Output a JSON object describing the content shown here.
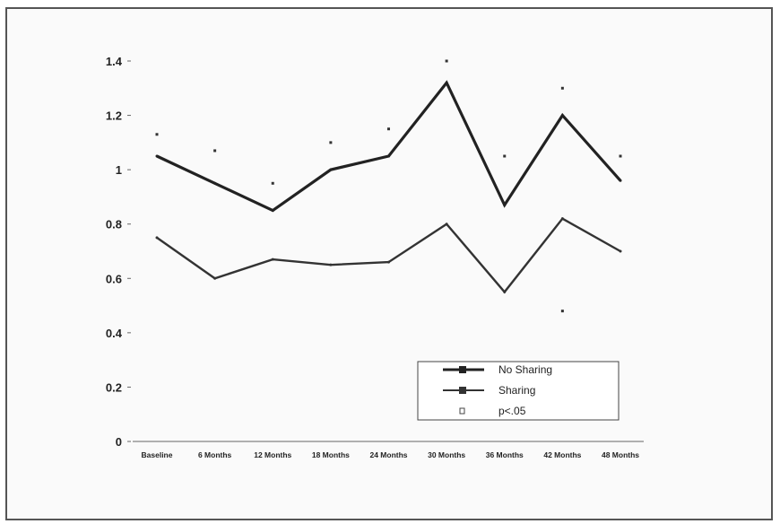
{
  "chart_data": {
    "type": "line",
    "categories": [
      "Baseline",
      "6 Months",
      "12 Months",
      "18 Months",
      "24 Months",
      "30 Months",
      "36 Months",
      "42 Months",
      "48 Months"
    ],
    "series": [
      {
        "name": "No Sharing",
        "values": [
          1.05,
          0.95,
          0.85,
          1.0,
          1.05,
          1.32,
          0.87,
          1.2,
          0.96
        ],
        "color": "#222222",
        "stroke": "bold"
      },
      {
        "name": "Sharing",
        "values": [
          0.75,
          0.6,
          0.67,
          0.65,
          0.66,
          0.8,
          0.55,
          0.82,
          0.7
        ],
        "color": "#333333",
        "stroke": "normal"
      }
    ],
    "significance_markers": {
      "name": "p<.05",
      "points": [
        {
          "category": "Baseline",
          "value": 1.13
        },
        {
          "category": "6 Months",
          "value": 1.07
        },
        {
          "category": "12 Months",
          "value": 0.95
        },
        {
          "category": "18 Months",
          "value": 1.1
        },
        {
          "category": "24 Months",
          "value": 1.15
        },
        {
          "category": "30 Months",
          "value": 1.4
        },
        {
          "category": "36 Months",
          "value": 1.05
        },
        {
          "category": "42 Months",
          "value": 1.3
        },
        {
          "category": "42 Months",
          "value": 0.48
        },
        {
          "category": "48 Months",
          "value": 1.05
        }
      ]
    },
    "yticks": [
      "0",
      "0.2",
      "0.4",
      "0.6",
      "0.8",
      "1",
      "1.2",
      "1.4"
    ],
    "ytick_values": [
      0,
      0.2,
      0.4,
      0.6,
      0.8,
      1,
      1.2,
      1.4
    ],
    "ylim": [
      0,
      1.4
    ],
    "grid": false,
    "legend": {
      "placement": "bottom-right",
      "entries": [
        "No Sharing",
        "Sharing",
        "p<.05"
      ]
    }
  }
}
